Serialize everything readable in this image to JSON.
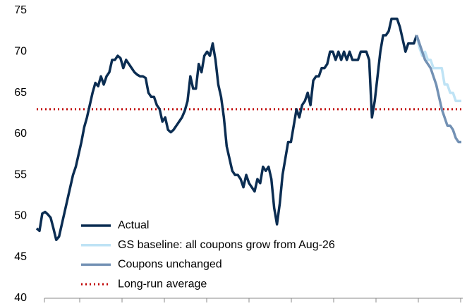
{
  "chart_data": {
    "type": "line",
    "ylim": [
      40,
      75
    ],
    "yticks": [
      40,
      45,
      50,
      55,
      60,
      65,
      70,
      75
    ],
    "legend": "lower left",
    "series": [
      {
        "name": "Actual",
        "color": "#0b2d52",
        "values": [
          48.5,
          48.2,
          50.3,
          50.5,
          50.2,
          49.8,
          48.5,
          47.1,
          47.5,
          49,
          50.5,
          52,
          53.5,
          55,
          56,
          57.5,
          59,
          60.8,
          62,
          63.5,
          65,
          66.2,
          65.8,
          67,
          66,
          67,
          67.5,
          69,
          69,
          69.5,
          69.2,
          68,
          69,
          68.5,
          68,
          67.5,
          67.2,
          67,
          67,
          66.8,
          65,
          64.5,
          64.5,
          63.5,
          63,
          61.5,
          62,
          60.5,
          60.2,
          60.5,
          61,
          61.5,
          62,
          62.8,
          64,
          67,
          65.5,
          65.5,
          68.5,
          67.5,
          69.5,
          70,
          69.5,
          71,
          69,
          66,
          64.5,
          62,
          58.5,
          57,
          55.5,
          55,
          55,
          54.5,
          53.5,
          55,
          54,
          53.5,
          53,
          54.5,
          54,
          56,
          55.5,
          56,
          54.5,
          51,
          49,
          51.5,
          55,
          57,
          59,
          59,
          61,
          63,
          62,
          63.5,
          64,
          65,
          63.5,
          66.5,
          67,
          67,
          68,
          68,
          68.5,
          70,
          70,
          69,
          70,
          69,
          70,
          69,
          70,
          69,
          69,
          69,
          70,
          70,
          70,
          69,
          62,
          64,
          67,
          70,
          72,
          72,
          72.5,
          74,
          74,
          74,
          73,
          71.5,
          70,
          71,
          71,
          71,
          72,
          null,
          null,
          null,
          null,
          null,
          null,
          null,
          null,
          null,
          null,
          null,
          null,
          null,
          null,
          null,
          null
        ]
      },
      {
        "name": "GS baseline: all coupons grow from Aug-26",
        "color": "#bfe3f5",
        "values": [
          null,
          null,
          null,
          null,
          null,
          null,
          null,
          null,
          null,
          null,
          null,
          null,
          null,
          null,
          null,
          null,
          null,
          null,
          null,
          null,
          null,
          null,
          null,
          null,
          null,
          null,
          null,
          null,
          null,
          null,
          null,
          null,
          null,
          null,
          null,
          null,
          null,
          null,
          null,
          null,
          null,
          null,
          null,
          null,
          null,
          null,
          null,
          null,
          null,
          null,
          null,
          null,
          null,
          null,
          null,
          null,
          null,
          null,
          null,
          null,
          null,
          null,
          null,
          null,
          null,
          null,
          null,
          null,
          null,
          null,
          null,
          null,
          null,
          null,
          null,
          null,
          null,
          null,
          null,
          null,
          null,
          null,
          null,
          null,
          null,
          null,
          null,
          null,
          null,
          null,
          null,
          null,
          null,
          null,
          null,
          null,
          null,
          null,
          null,
          null,
          null,
          null,
          null,
          null,
          null,
          null,
          null,
          null,
          null,
          null,
          null,
          null,
          null,
          null,
          null,
          null,
          null,
          null,
          null,
          null,
          null,
          null,
          null,
          null,
          null,
          null,
          null,
          null,
          null,
          null,
          null,
          null,
          null,
          null,
          null,
          null,
          72,
          70.5,
          69.5,
          70,
          69,
          69,
          68,
          68,
          68,
          68,
          66,
          66,
          65,
          65,
          64,
          64,
          64
        ]
      },
      {
        "name": "Coupons unchanged",
        "color": "#7391b4",
        "values": [
          null,
          null,
          null,
          null,
          null,
          null,
          null,
          null,
          null,
          null,
          null,
          null,
          null,
          null,
          null,
          null,
          null,
          null,
          null,
          null,
          null,
          null,
          null,
          null,
          null,
          null,
          null,
          null,
          null,
          null,
          null,
          null,
          null,
          null,
          null,
          null,
          null,
          null,
          null,
          null,
          null,
          null,
          null,
          null,
          null,
          null,
          null,
          null,
          null,
          null,
          null,
          null,
          null,
          null,
          null,
          null,
          null,
          null,
          null,
          null,
          null,
          null,
          null,
          null,
          null,
          null,
          null,
          null,
          null,
          null,
          null,
          null,
          null,
          null,
          null,
          null,
          null,
          null,
          null,
          null,
          null,
          null,
          null,
          null,
          null,
          null,
          null,
          null,
          null,
          null,
          null,
          null,
          null,
          null,
          null,
          null,
          null,
          null,
          null,
          null,
          null,
          null,
          null,
          null,
          null,
          null,
          null,
          null,
          null,
          null,
          null,
          null,
          null,
          null,
          null,
          null,
          null,
          null,
          null,
          null,
          null,
          null,
          null,
          null,
          null,
          null,
          null,
          null,
          null,
          null,
          null,
          null,
          null,
          null,
          null,
          null,
          72,
          71,
          70,
          69,
          68.5,
          68,
          67,
          66,
          64.5,
          63,
          62,
          61,
          61,
          60.5,
          59.5,
          59,
          59
        ]
      }
    ],
    "reference_line": {
      "name": "Long-run average",
      "value": 63,
      "color": "#c00000"
    }
  }
}
